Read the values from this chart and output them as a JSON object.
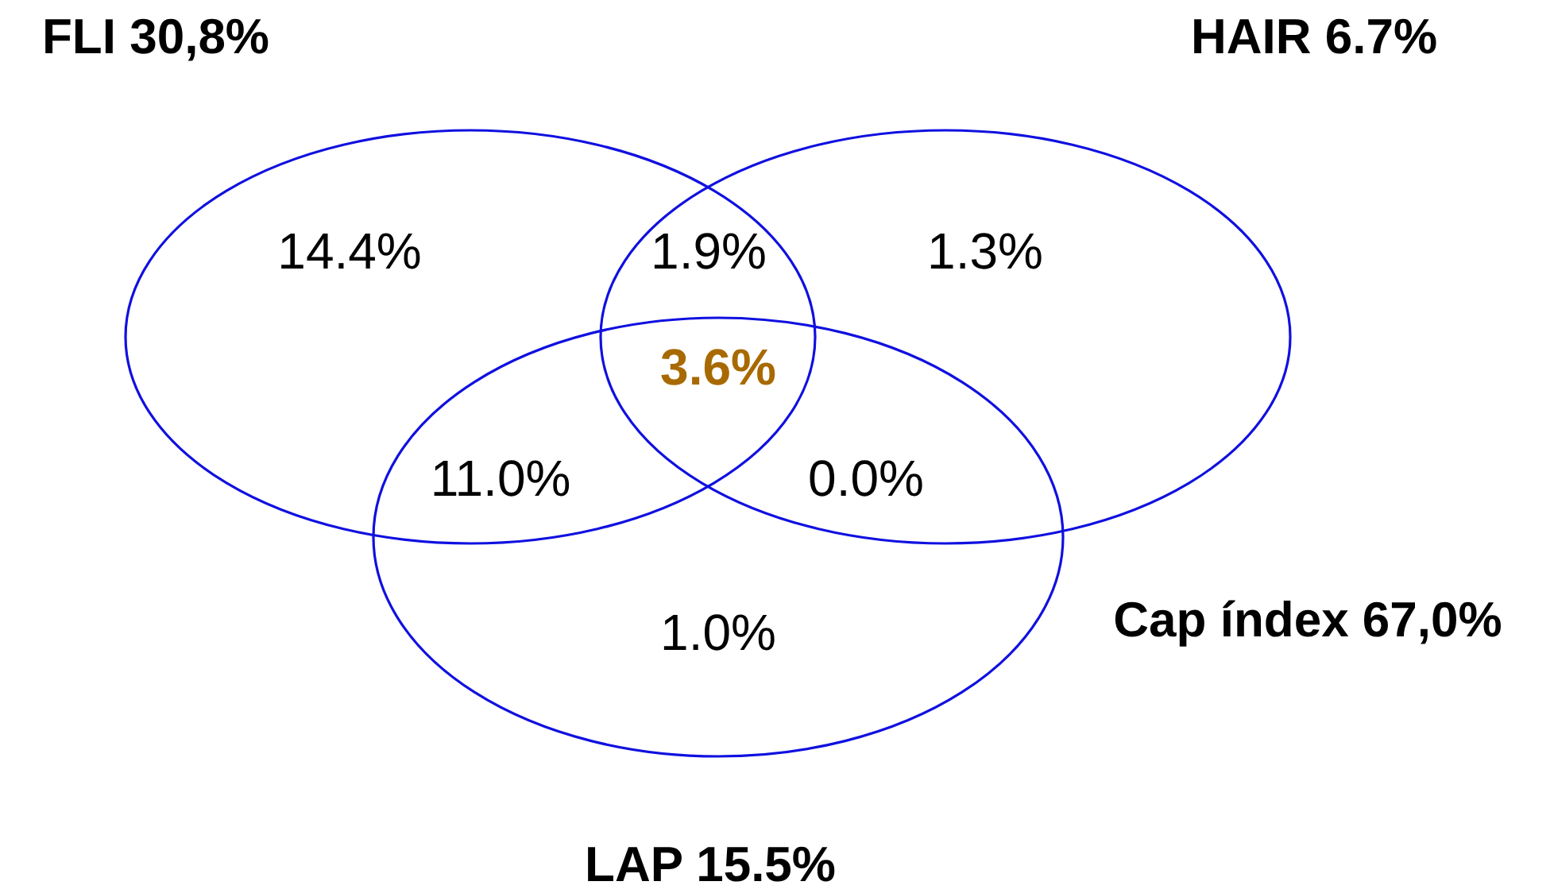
{
  "chart_data": {
    "type": "other",
    "annotations": [
      "FLI 30,8%",
      "HAIR 6.7%",
      "Cap índex 67,0%",
      "LAP 15.5%"
    ],
    "categories": [
      null,
      null,
      null,
      null,
      null,
      null,
      null
    ],
    "values": [
      14.4,
      1.9,
      1.3,
      3.6,
      11.0,
      0.0,
      1.0
    ],
    "value_labels": [
      "14.4%",
      "1.9%",
      "1.3%",
      "3.6%",
      "11.0%",
      "0.0%",
      "1.0%"
    ],
    "color": "#000000",
    "colors": [
      "#000000",
      "#000000",
      "#000000",
      "#a86a00",
      "#000000",
      "#000000",
      "#000000"
    ]
  }
}
